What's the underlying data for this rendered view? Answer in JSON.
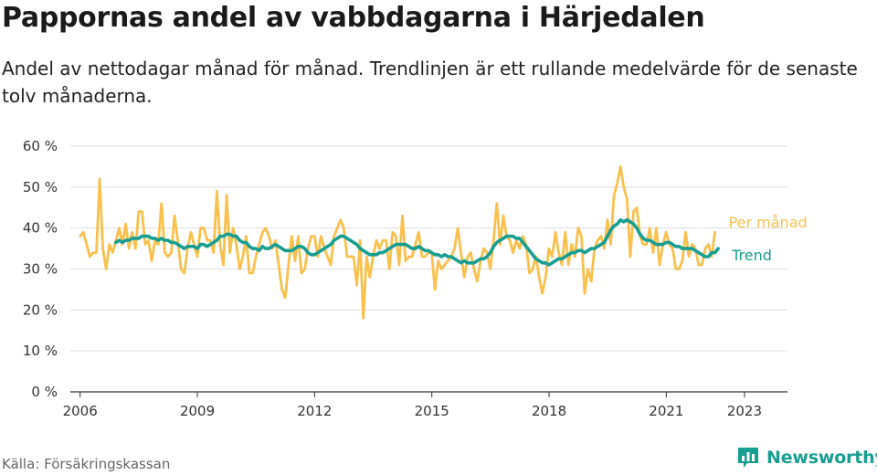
{
  "title": "Pappornas andel av vabbdagarna i Härjedalen",
  "subtitle": "Andel av nettodagar månad för månad. Trendlinjen är ett rullande medelvärde för de senaste tolv månaderna.",
  "source": "Källa: Försäkringskassan",
  "brand": "Newsworthy",
  "colors": {
    "monthly": "#f9c04d",
    "trend": "#189e91",
    "grid": "#dddddd",
    "text": "#1a1a1a"
  },
  "chart_data": {
    "type": "line",
    "title": "Pappornas andel av vabbdagarna i Härjedalen",
    "xlabel": "",
    "ylabel": "",
    "xlim": [
      2005.75,
      2024.1
    ],
    "ylim": [
      0,
      60
    ],
    "y_ticks": [
      0,
      10,
      20,
      30,
      40,
      50,
      60
    ],
    "y_tick_labels": [
      "0 %",
      "10 %",
      "20 %",
      "30 %",
      "40 %",
      "50 %",
      "60 %"
    ],
    "x_ticks": [
      2006,
      2009,
      2012,
      2015,
      2018,
      2021,
      2023
    ],
    "x_tick_labels": [
      "2006",
      "2009",
      "2012",
      "2015",
      "2018",
      "2021",
      "2023"
    ],
    "grid": true,
    "x_start": 2006.0,
    "x_step": 0.0833,
    "series": [
      {
        "name": "Per månad",
        "label": "Per månad",
        "values": [
          38.0,
          39.0,
          36.0,
          33.0,
          34.0,
          34.0,
          52.0,
          35.0,
          30.0,
          36.0,
          34.0,
          37.0,
          40.0,
          36.0,
          41.0,
          35.0,
          39.0,
          35.0,
          44.0,
          44.0,
          36.0,
          37.0,
          32.0,
          37.0,
          36.0,
          46.0,
          34.0,
          33.0,
          34.0,
          43.0,
          37.0,
          30.0,
          29.0,
          35.0,
          39.0,
          36.0,
          33.0,
          40.0,
          40.0,
          37.0,
          37.0,
          34.0,
          49.0,
          36.0,
          31.0,
          48.0,
          34.0,
          40.0,
          36.0,
          30.0,
          33.0,
          38.0,
          29.0,
          29.0,
          33.0,
          36.0,
          39.0,
          40.0,
          38.0,
          35.0,
          37.0,
          31.0,
          25.0,
          23.0,
          31.0,
          38.0,
          32.0,
          38.0,
          29.0,
          30.0,
          35.0,
          38.0,
          38.0,
          33.0,
          38.0,
          35.0,
          33.0,
          31.0,
          38.0,
          40.0,
          42.0,
          40.0,
          33.0,
          33.0,
          33.0,
          26.0,
          37.0,
          18.0,
          33.0,
          28.0,
          33.0,
          37.0,
          35.0,
          37.0,
          37.0,
          30.0,
          39.0,
          38.0,
          31.0,
          43.0,
          32.0,
          33.0,
          33.0,
          36.0,
          39.0,
          33.0,
          33.0,
          34.0,
          34.0,
          25.0,
          32.0,
          30.0,
          31.0,
          32.0,
          33.0,
          35.0,
          40.0,
          34.0,
          28.0,
          33.0,
          34.0,
          30.0,
          27.0,
          32.0,
          35.0,
          34.0,
          30.0,
          37.0,
          46.0,
          36.0,
          43.0,
          38.0,
          37.0,
          34.0,
          37.0,
          35.0,
          38.0,
          36.0,
          29.0,
          30.0,
          33.0,
          28.0,
          24.0,
          28.0,
          35.0,
          33.0,
          39.0,
          34.0,
          31.0,
          39.0,
          31.0,
          36.0,
          33.0,
          40.0,
          38.0,
          24.0,
          30.0,
          27.0,
          35.0,
          37.0,
          38.0,
          35.0,
          42.0,
          36.0,
          48.0,
          51.0,
          55.0,
          50.0,
          47.0,
          33.0,
          44.0,
          45.0,
          38.0,
          36.0,
          36.0,
          40.0,
          34.0,
          40.0,
          31.0,
          36.0,
          39.0,
          36.0,
          35.0,
          30.0,
          30.0,
          32.0,
          39.0,
          33.0,
          36.0,
          35.0,
          31.0,
          31.0,
          35.0,
          36.0,
          33.0,
          39.0
        ],
        "style": "line"
      },
      {
        "name": "Trend",
        "label": "Trend",
        "values": [
          null,
          null,
          null,
          null,
          null,
          null,
          null,
          null,
          null,
          null,
          null,
          36.5,
          37.0,
          36.5,
          37.0,
          37.0,
          37.5,
          37.5,
          37.5,
          38.0,
          38.0,
          38.0,
          37.5,
          37.5,
          37.0,
          37.5,
          37.0,
          37.0,
          36.5,
          36.5,
          36.0,
          35.5,
          35.0,
          35.5,
          35.5,
          35.5,
          35.0,
          36.0,
          36.0,
          35.5,
          36.0,
          36.5,
          37.0,
          38.0,
          38.0,
          38.5,
          38.5,
          38.0,
          38.0,
          37.0,
          36.5,
          36.5,
          35.5,
          35.0,
          35.0,
          34.5,
          35.5,
          35.0,
          35.0,
          35.5,
          36.0,
          35.5,
          35.0,
          34.5,
          34.5,
          34.5,
          35.0,
          35.5,
          35.5,
          35.0,
          34.0,
          33.5,
          33.5,
          34.0,
          34.5,
          35.0,
          35.5,
          36.0,
          37.0,
          37.5,
          38.0,
          38.0,
          37.5,
          37.0,
          36.5,
          36.0,
          35.0,
          34.5,
          34.0,
          33.5,
          33.5,
          33.5,
          34.0,
          34.0,
          34.5,
          35.0,
          35.5,
          36.0,
          36.0,
          36.0,
          36.0,
          35.5,
          35.0,
          35.0,
          35.5,
          35.0,
          34.5,
          34.5,
          34.0,
          33.5,
          33.5,
          33.0,
          33.5,
          33.0,
          33.0,
          32.5,
          32.0,
          31.5,
          32.0,
          31.5,
          31.5,
          31.5,
          32.0,
          32.5,
          32.5,
          33.0,
          34.0,
          35.5,
          36.5,
          37.0,
          37.5,
          38.0,
          38.0,
          38.0,
          37.5,
          37.5,
          36.5,
          35.5,
          34.5,
          33.5,
          32.5,
          32.0,
          31.5,
          31.5,
          31.0,
          31.5,
          32.0,
          32.5,
          32.5,
          33.0,
          33.5,
          34.0,
          34.0,
          34.5,
          34.5,
          34.0,
          34.5,
          35.0,
          35.0,
          35.5,
          36.0,
          36.5,
          38.0,
          39.5,
          40.5,
          41.0,
          42.0,
          41.5,
          42.0,
          41.5,
          41.0,
          40.0,
          38.5,
          37.5,
          37.0,
          37.0,
          36.5,
          36.0,
          36.0,
          36.0,
          36.5,
          36.5,
          36.0,
          35.5,
          35.5,
          35.0,
          35.0,
          35.0,
          35.0,
          34.5,
          34.0,
          33.5,
          33.0,
          33.0,
          34.0,
          34.0,
          35.0
        ],
        "style": "line"
      }
    ]
  }
}
